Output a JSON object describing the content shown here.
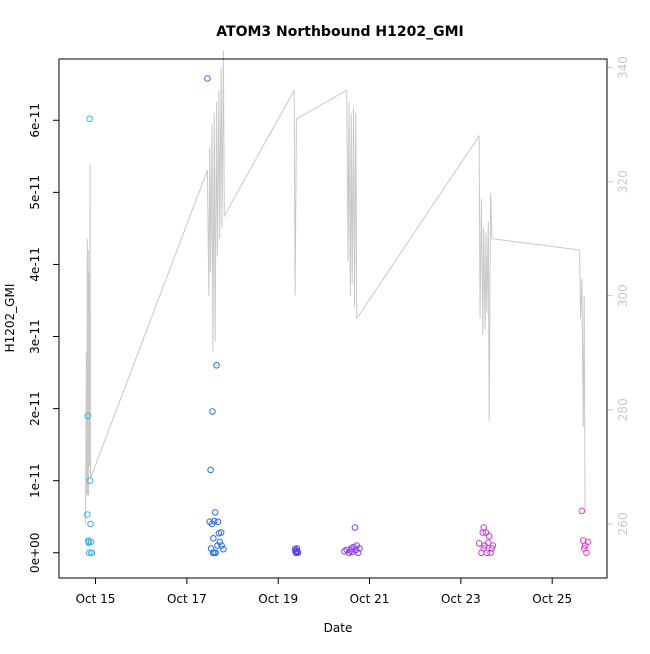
{
  "chart_data": {
    "type": "scatter",
    "title": "ATOM3 Northbound H1202_GMI",
    "xlabel": "Date",
    "ylabel": "H1202_GMI",
    "x_ticks": [
      {
        "label": "Oct 15",
        "value": 0
      },
      {
        "label": "Oct 17",
        "value": 2
      },
      {
        "label": "Oct 19",
        "value": 4
      },
      {
        "label": "Oct 21",
        "value": 6
      },
      {
        "label": "Oct 23",
        "value": 8
      },
      {
        "label": "Oct 25",
        "value": 10
      }
    ],
    "xlim": [
      -0.8,
      11.2
    ],
    "ylim": [
      -3.5e-12,
      6.85e-11
    ],
    "y_ticks": [
      {
        "label": "0e+00",
        "value": 0
      },
      {
        "label": "1e-11",
        "value": 1e-11
      },
      {
        "label": "2e-11",
        "value": 2e-11
      },
      {
        "label": "3e-11",
        "value": 3e-11
      },
      {
        "label": "4e-11",
        "value": 4e-11
      },
      {
        "label": "5e-11",
        "value": 5e-11
      },
      {
        "label": "6e-11",
        "value": 6e-11
      }
    ],
    "y2lim": [
      250.5,
      341.5
    ],
    "y2_ticks": [
      {
        "label": "260",
        "value": 260
      },
      {
        "label": "280",
        "value": 280
      },
      {
        "label": "300",
        "value": 300
      },
      {
        "label": "320",
        "value": 320
      },
      {
        "label": "340",
        "value": 340
      }
    ],
    "grid": false,
    "series": [
      {
        "kind": "points",
        "color": "#33b5e6",
        "points": [
          [
            -0.18,
            5.3e-12
          ],
          [
            -0.17,
            1.9e-11
          ],
          [
            -0.16,
            1.7e-12
          ],
          [
            -0.15,
            1.5e-12
          ],
          [
            -0.14,
            0
          ],
          [
            -0.13,
            6.02e-11
          ],
          [
            -0.12,
            1e-11
          ],
          [
            -0.11,
            4e-12
          ],
          [
            -0.1,
            1.5e-12
          ],
          [
            -0.09,
            0
          ],
          [
            -0.08,
            0
          ],
          [
            -0.15,
            1.4e-12
          ]
        ]
      },
      {
        "kind": "points",
        "color": "#2a6fe8",
        "points": [
          [
            2.45,
            6.58e-11
          ],
          [
            2.52,
            1.15e-11
          ],
          [
            2.56,
            1.96e-11
          ],
          [
            2.65,
            2.6e-11
          ],
          [
            2.5,
            4.3e-12
          ],
          [
            2.55,
            4e-12
          ],
          [
            2.6,
            4.4e-12
          ],
          [
            2.62,
            5.6e-12
          ],
          [
            2.68,
            4.3e-12
          ],
          [
            2.58,
            2e-12
          ],
          [
            2.7,
            2.7e-12
          ],
          [
            2.75,
            2.8e-12
          ],
          [
            2.53,
            6e-13
          ],
          [
            2.57,
            0
          ],
          [
            2.63,
            0
          ],
          [
            2.67,
            1e-12
          ],
          [
            2.72,
            1.5e-12
          ],
          [
            2.76,
            1e-12
          ],
          [
            2.8,
            5e-13
          ],
          [
            2.6,
            0
          ]
        ]
      },
      {
        "kind": "points",
        "color": "#5a3ee8",
        "points": [
          [
            4.37,
            5e-13
          ],
          [
            4.38,
            2e-13
          ],
          [
            4.39,
            0
          ],
          [
            4.4,
            3e-13
          ],
          [
            4.41,
            6e-13
          ],
          [
            4.42,
            1e-13
          ],
          [
            4.43,
            0
          ]
        ]
      },
      {
        "kind": "points",
        "color": "#8b3fe0",
        "points": [
          [
            5.45,
            2e-13
          ],
          [
            5.5,
            4e-13
          ],
          [
            5.55,
            0
          ],
          [
            5.6,
            6e-13
          ],
          [
            5.62,
            1e-13
          ],
          [
            5.65,
            8e-13
          ],
          [
            5.68,
            3.5e-12
          ],
          [
            5.7,
            4e-13
          ],
          [
            5.72,
            1e-12
          ],
          [
            5.75,
            0
          ],
          [
            5.78,
            6e-13
          ],
          [
            5.58,
            3e-13
          ]
        ]
      },
      {
        "kind": "points",
        "color": "#c23fd6",
        "points": [
          [
            8.4,
            1.3e-12
          ],
          [
            8.45,
            0
          ],
          [
            8.48,
            2.8e-12
          ],
          [
            8.5,
            3.5e-12
          ],
          [
            8.52,
            1e-12
          ],
          [
            8.55,
            2.8e-12
          ],
          [
            8.57,
            0
          ],
          [
            8.6,
            1.4e-12
          ],
          [
            8.62,
            2.3e-12
          ],
          [
            8.65,
            0
          ],
          [
            8.68,
            6e-13
          ],
          [
            8.7,
            1e-12
          ],
          [
            8.5,
            6e-13
          ]
        ]
      },
      {
        "kind": "points",
        "color": "#e03fcf",
        "points": [
          [
            10.65,
            5.8e-12
          ],
          [
            10.68,
            1.7e-12
          ],
          [
            10.72,
            1e-12
          ],
          [
            10.75,
            0
          ],
          [
            10.78,
            1.5e-12
          ],
          [
            10.7,
            6e-13
          ]
        ]
      },
      {
        "kind": "line",
        "axis": "right",
        "color": "#c8c8c8",
        "points": [
          [
            -0.22,
            260
          ],
          [
            -0.2,
            290
          ],
          [
            -0.19,
            265
          ],
          [
            -0.18,
            310
          ],
          [
            -0.17,
            265
          ],
          [
            -0.16,
            308
          ],
          [
            -0.15,
            265
          ],
          [
            -0.14,
            304
          ],
          [
            -0.13,
            270
          ],
          [
            -0.12,
            323
          ],
          [
            -0.11,
            268
          ],
          [
            2.45,
            322
          ],
          [
            2.48,
            300
          ],
          [
            2.5,
            326
          ],
          [
            2.52,
            304
          ],
          [
            2.55,
            330
          ],
          [
            2.57,
            290
          ],
          [
            2.6,
            332
          ],
          [
            2.62,
            292
          ],
          [
            2.65,
            334
          ],
          [
            2.67,
            307
          ],
          [
            2.7,
            336
          ],
          [
            2.72,
            310
          ],
          [
            2.75,
            340
          ],
          [
            2.77,
            312
          ],
          [
            2.8,
            343
          ],
          [
            2.82,
            314
          ],
          [
            4.35,
            336
          ],
          [
            4.37,
            300
          ],
          [
            4.4,
            331
          ],
          [
            5.5,
            336
          ],
          [
            5.53,
            306
          ],
          [
            5.55,
            334
          ],
          [
            5.58,
            300
          ],
          [
            5.6,
            332
          ],
          [
            5.62,
            302
          ],
          [
            5.65,
            333
          ],
          [
            5.67,
            298
          ],
          [
            5.7,
            332
          ],
          [
            5.72,
            296
          ],
          [
            8.4,
            328
          ],
          [
            8.42,
            296
          ],
          [
            8.45,
            317
          ],
          [
            8.48,
            293
          ],
          [
            8.5,
            312
          ],
          [
            8.53,
            294
          ],
          [
            8.55,
            311
          ],
          [
            8.57,
            297
          ],
          [
            8.6,
            313
          ],
          [
            8.62,
            278
          ],
          [
            8.65,
            318
          ],
          [
            8.68,
            310
          ],
          [
            10.6,
            308
          ],
          [
            10.62,
            296
          ],
          [
            10.65,
            303
          ],
          [
            10.68,
            277
          ],
          [
            10.7,
            300
          ],
          [
            10.72,
            262
          ]
        ]
      }
    ]
  }
}
